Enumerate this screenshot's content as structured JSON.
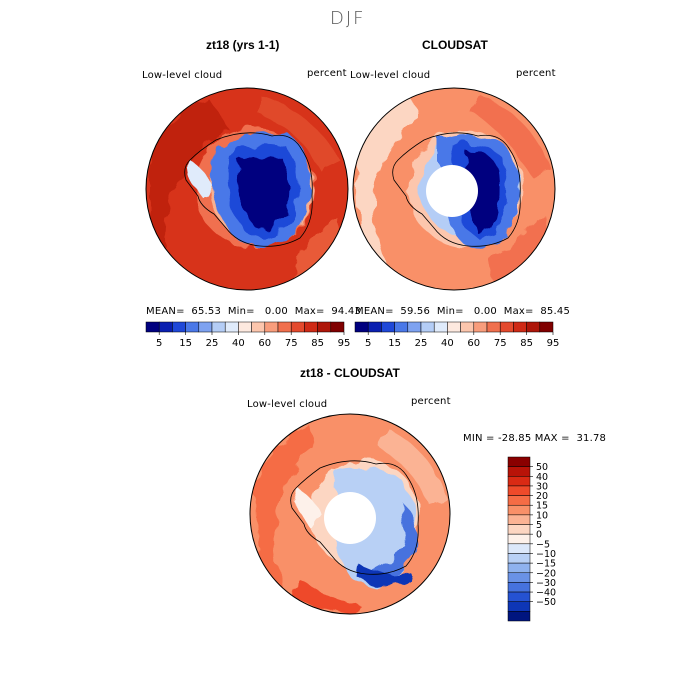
{
  "figure": {
    "season": "DJF",
    "panels": [
      {
        "id": "model",
        "title": "zt18 (yrs 1-1)",
        "left_label": "Low-level cloud",
        "right_label": "percent",
        "stats": {
          "mean_label": "MEAN=",
          "mean": "65.53",
          "min_label": "Min=",
          "min": "0.00",
          "max_label": "Max=",
          "max": "94.43"
        }
      },
      {
        "id": "obs",
        "title": "CLOUDSAT",
        "left_label": "Low-level cloud",
        "right_label": "percent",
        "stats": {
          "mean_label": "MEAN=",
          "mean": "59.56",
          "min_label": "Min=",
          "min": "0.00",
          "max_label": "Max=",
          "max": "85.45"
        }
      },
      {
        "id": "diff",
        "title": "zt18 - CLOUDSAT",
        "left_label": "Low-level cloud",
        "right_label": "percent",
        "stats_line": "MIN = -28.85 MAX =  31.78"
      }
    ],
    "abs_colorbar": {
      "tick_labels": [
        "5",
        "15",
        "25",
        "40",
        "60",
        "75",
        "85",
        "95"
      ],
      "colors": [
        "#00007f",
        "#0a1fb0",
        "#1f48d8",
        "#4a78e8",
        "#7ea2f0",
        "#b4cdf6",
        "#e0ebfb",
        "#fde9df",
        "#fcc6ad",
        "#f89d7c",
        "#f0704e",
        "#e44a2e",
        "#cf2a16",
        "#ae1609",
        "#800000"
      ]
    },
    "diff_colorbar": {
      "tick_labels": [
        "50",
        "40",
        "30",
        "20",
        "15",
        "10",
        "5",
        "0",
        "−5",
        "−10",
        "−15",
        "−20",
        "−30",
        "−40",
        "−50"
      ],
      "colors": [
        "#8a0000",
        "#b81308",
        "#d92a14",
        "#ee4a2a",
        "#f56c45",
        "#f99068",
        "#fbb394",
        "#fcd6c2",
        "#fdf1ea",
        "#dce8fa",
        "#b8d0f5",
        "#8fb2ee",
        "#6a92e6",
        "#4672de",
        "#2552d2",
        "#0e36b6",
        "#00157f"
      ]
    }
  }
}
